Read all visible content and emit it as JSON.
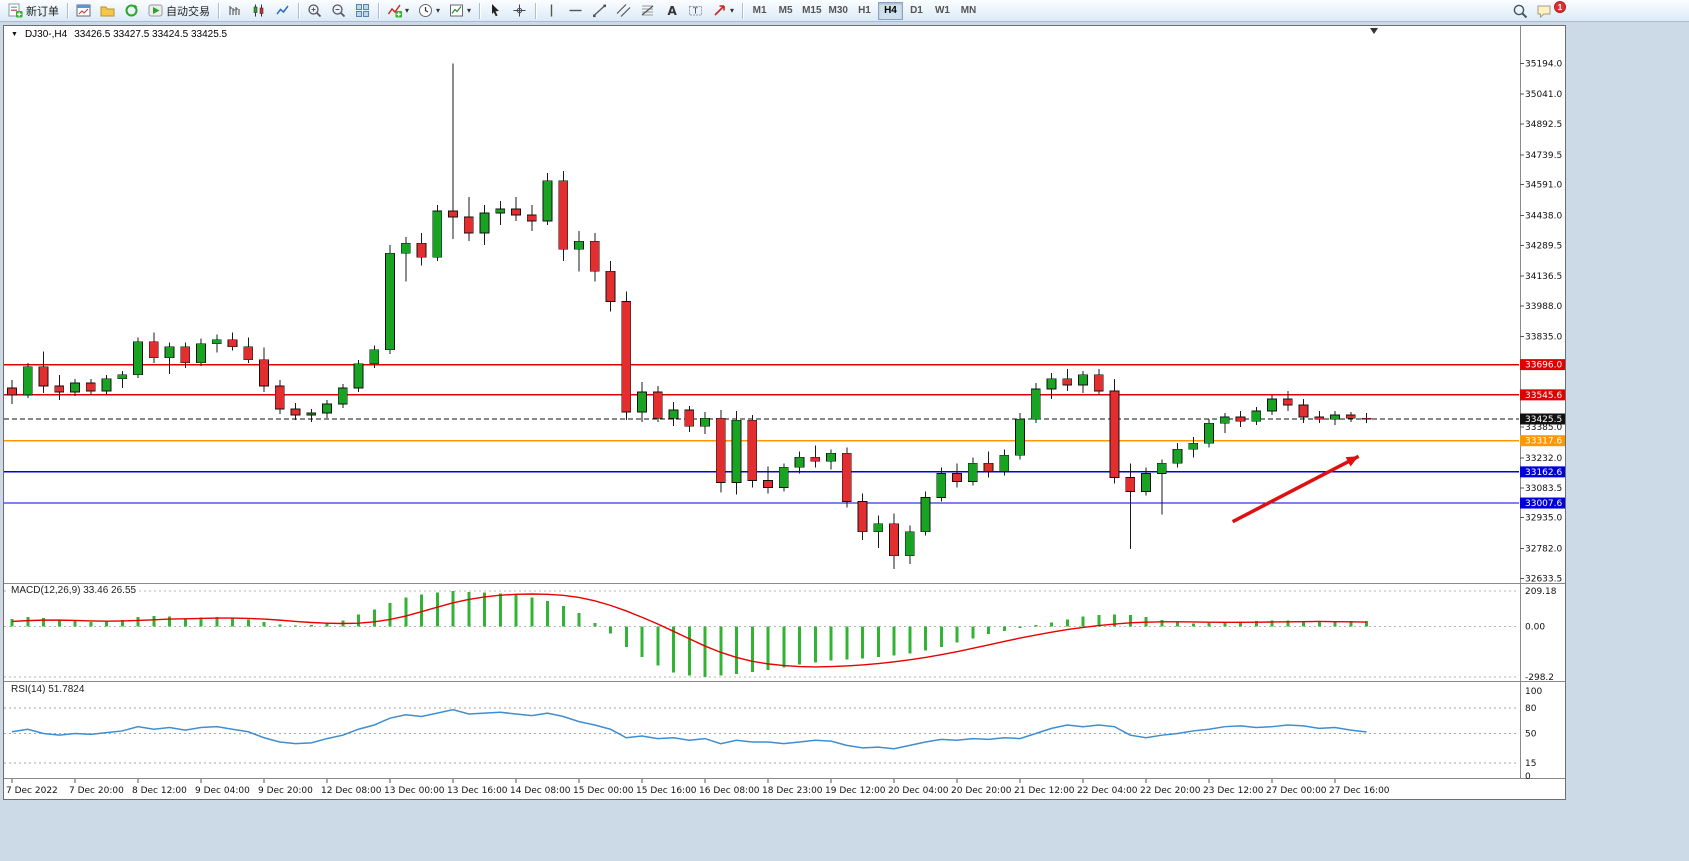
{
  "toolbar": {
    "new_order": "新订单",
    "autotrading": "自动交易",
    "timeframes": [
      {
        "label": "M1"
      },
      {
        "label": "M5"
      },
      {
        "label": "M15"
      },
      {
        "label": "M30"
      },
      {
        "label": "H1"
      },
      {
        "label": "H4"
      },
      {
        "label": "D1"
      },
      {
        "label": "W1"
      },
      {
        "label": "MN"
      }
    ],
    "active_timeframe": "H4",
    "notification_count": "1",
    "icons": [
      "new-order",
      "new-chart",
      "profiles",
      "refresh",
      "autotrading",
      "bar-chart",
      "candlestick-chart",
      "line-chart",
      "zoom-in",
      "zoom-out",
      "tile-windows",
      "indicators",
      "periods",
      "templates",
      "cursor",
      "crosshair",
      "vertical-line",
      "horizontal-line",
      "trendline",
      "equidistant-channel",
      "fibonacci",
      "text",
      "text-label",
      "arrows",
      "search",
      "messages"
    ]
  },
  "symbol": {
    "name_period": "DJ30-,H4",
    "quote": "33426.5 33427.5 33424.5 33425.5"
  },
  "indicators": {
    "macd": "MACD(12,26,9) 33.46 26.55",
    "rsi": "RSI(14) 51.7824"
  },
  "time_axis": [
    "7 Dec 2022",
    "7 Dec 20:00",
    "8 Dec 12:00",
    "9 Dec 04:00",
    "9 Dec 20:00",
    "12 Dec 08:00",
    "13 Dec 00:00",
    "13 Dec 16:00",
    "14 Dec 08:00",
    "15 Dec 00:00",
    "15 Dec 16:00",
    "16 Dec 08:00",
    "18 Dec 23:00",
    "19 Dec 12:00",
    "20 Dec 04:00",
    "20 Dec 20:00",
    "21 Dec 12:00",
    "22 Dec 04:00",
    "22 Dec 20:00",
    "23 Dec 12:00",
    "27 Dec 00:00",
    "27 Dec 16:00"
  ],
  "chart_data": [
    {
      "type": "candlestick",
      "symbol": "DJ30-",
      "period": "H4",
      "ylim": [
        32610,
        35350
      ],
      "y_ticks": [
        35194.0,
        35041.0,
        34892.5,
        34739.5,
        34591.0,
        34438.0,
        34289.5,
        34136.5,
        33988.0,
        33835.0,
        33385.0,
        33232.0,
        33083.5,
        32935.0,
        32782.0,
        32633.5
      ],
      "hlines": [
        {
          "value": 33696.0,
          "color": "#e10000"
        },
        {
          "value": 33545.6,
          "color": "#e10000"
        },
        {
          "value": 33317.6,
          "color": "#ff9800"
        },
        {
          "value": 33162.6,
          "color": "#0000dd"
        },
        {
          "value": 33007.6,
          "color": "#0000dd"
        }
      ],
      "current_price": {
        "value": 33425.5,
        "color": "#111111"
      },
      "up_color": "#19a322",
      "down_color": "#e22e2e",
      "arrow": {
        "from_bar": 77.5,
        "from_price": 32915,
        "to_bar": 85.5,
        "to_price": 33240,
        "color": "#dd1111"
      },
      "ohlc": [
        [
          33580,
          33620,
          33500,
          33545
        ],
        [
          33545,
          33705,
          33530,
          33685
        ],
        [
          33685,
          33760,
          33555,
          33590
        ],
        [
          33590,
          33645,
          33520,
          33560
        ],
        [
          33560,
          33625,
          33540,
          33605
        ],
        [
          33605,
          33625,
          33545,
          33565
        ],
        [
          33565,
          33645,
          33550,
          33625
        ],
        [
          33625,
          33665,
          33580,
          33645
        ],
        [
          33645,
          33830,
          33630,
          33810
        ],
        [
          33810,
          33855,
          33705,
          33730
        ],
        [
          33730,
          33805,
          33650,
          33785
        ],
        [
          33785,
          33805,
          33680,
          33705
        ],
        [
          33705,
          33825,
          33690,
          33800
        ],
        [
          33800,
          33845,
          33755,
          33820
        ],
        [
          33820,
          33855,
          33765,
          33785
        ],
        [
          33785,
          33830,
          33705,
          33720
        ],
        [
          33720,
          33780,
          33560,
          33590
        ],
        [
          33590,
          33620,
          33450,
          33475
        ],
        [
          33475,
          33505,
          33420,
          33445
        ],
        [
          33445,
          33475,
          33410,
          33455
        ],
        [
          33455,
          33520,
          33430,
          33500
        ],
        [
          33500,
          33600,
          33480,
          33580
        ],
        [
          33580,
          33720,
          33560,
          33700
        ],
        [
          33700,
          33790,
          33680,
          33770
        ],
        [
          33770,
          34290,
          33750,
          34250
        ],
        [
          34250,
          34330,
          34110,
          34300
        ],
        [
          34300,
          34350,
          34190,
          34230
        ],
        [
          34230,
          34490,
          34210,
          34460
        ],
        [
          34460,
          35194,
          34320,
          34430
        ],
        [
          34430,
          34530,
          34310,
          34350
        ],
        [
          34350,
          34490,
          34290,
          34450
        ],
        [
          34450,
          34510,
          34390,
          34470
        ],
        [
          34470,
          34530,
          34410,
          34440
        ],
        [
          34440,
          34490,
          34360,
          34410
        ],
        [
          34410,
          34650,
          34390,
          34610
        ],
        [
          34610,
          34660,
          34210,
          34270
        ],
        [
          34270,
          34360,
          34160,
          34310
        ],
        [
          34310,
          34350,
          34110,
          34160
        ],
        [
          34160,
          34210,
          33960,
          34010
        ],
        [
          34010,
          34060,
          33420,
          33460
        ],
        [
          33460,
          33610,
          33410,
          33560
        ],
        [
          33560,
          33590,
          33410,
          33430
        ],
        [
          33430,
          33510,
          33390,
          33470
        ],
        [
          33470,
          33490,
          33360,
          33390
        ],
        [
          33390,
          33460,
          33350,
          33430
        ],
        [
          33430,
          33470,
          33060,
          33110
        ],
        [
          33110,
          33465,
          33050,
          33420
        ],
        [
          33420,
          33445,
          33085,
          33120
        ],
        [
          33120,
          33190,
          33055,
          33085
        ],
        [
          33085,
          33205,
          33065,
          33185
        ],
        [
          33185,
          33265,
          33155,
          33235
        ],
        [
          33235,
          33295,
          33185,
          33215
        ],
        [
          33215,
          33275,
          33175,
          33255
        ],
        [
          33255,
          33285,
          32985,
          33015
        ],
        [
          33015,
          33055,
          32825,
          32865
        ],
        [
          32865,
          32945,
          32785,
          32905
        ],
        [
          32905,
          32955,
          32680,
          32745
        ],
        [
          32745,
          32895,
          32705,
          32865
        ],
        [
          32865,
          33065,
          32845,
          33035
        ],
        [
          33035,
          33185,
          33015,
          33155
        ],
        [
          33155,
          33205,
          33085,
          33115
        ],
        [
          33115,
          33235,
          33095,
          33205
        ],
        [
          33205,
          33265,
          33135,
          33165
        ],
        [
          33165,
          33275,
          33145,
          33245
        ],
        [
          33245,
          33455,
          33225,
          33425
        ],
        [
          33425,
          33605,
          33405,
          33575
        ],
        [
          33575,
          33655,
          33525,
          33625
        ],
        [
          33625,
          33675,
          33565,
          33595
        ],
        [
          33595,
          33665,
          33555,
          33645
        ],
        [
          33645,
          33675,
          33545,
          33565
        ],
        [
          33565,
          33625,
          33105,
          33135
        ],
        [
          33135,
          33205,
          32780,
          33065
        ],
        [
          33065,
          33185,
          33045,
          33155
        ],
        [
          33155,
          33225,
          32950,
          33205
        ],
        [
          33205,
          33305,
          33185,
          33275
        ],
        [
          33275,
          33335,
          33235,
          33305
        ],
        [
          33305,
          33425,
          33285,
          33405
        ],
        [
          33405,
          33455,
          33355,
          33435
        ],
        [
          33435,
          33465,
          33385,
          33415
        ],
        [
          33415,
          33485,
          33395,
          33465
        ],
        [
          33465,
          33545,
          33445,
          33525
        ],
        [
          33525,
          33565,
          33465,
          33495
        ],
        [
          33495,
          33525,
          33405,
          33435
        ],
        [
          33435,
          33465,
          33405,
          33425
        ],
        [
          33425,
          33465,
          33395,
          33445
        ],
        [
          33445,
          33460,
          33410,
          33430
        ],
        [
          33430,
          33455,
          33405,
          33425.5
        ]
      ]
    },
    {
      "type": "bar",
      "name": "MACD(12,26,9)",
      "main_value": 33.46,
      "signal_value": 26.55,
      "ylim": [
        -321,
        251
      ],
      "ticks": [
        {
          "label": "209.18",
          "value": 209.18
        },
        {
          "label": "0.00",
          "value": 0
        },
        {
          "label": "-298.2",
          "value": -298.2
        }
      ],
      "hist_color": "#33b333",
      "signal_color": "#e80000",
      "histogram": [
        45,
        55,
        50,
        40,
        32,
        28,
        32,
        38,
        55,
        62,
        58,
        48,
        52,
        56,
        48,
        42,
        28,
        12,
        6,
        10,
        20,
        35,
        70,
        100,
        140,
        170,
        190,
        200,
        209,
        205,
        200,
        195,
        185,
        170,
        150,
        120,
        80,
        20,
        -40,
        -120,
        -180,
        -230,
        -270,
        -290,
        -298,
        -290,
        -280,
        -268,
        -255,
        -240,
        -225,
        -212,
        -200,
        -195,
        -188,
        -180,
        -170,
        -158,
        -142,
        -120,
        -95,
        -70,
        -45,
        -25,
        -8,
        8,
        25,
        42,
        58,
        68,
        72,
        68,
        55,
        38,
        25,
        18,
        22,
        26,
        30,
        33,
        35,
        35,
        34,
        33,
        34,
        34,
        33.46
      ],
      "signal": [
        30,
        35,
        38,
        38,
        36,
        33,
        32,
        33,
        36,
        40,
        44,
        46,
        48,
        50,
        50,
        48,
        44,
        38,
        30,
        24,
        20,
        18,
        20,
        28,
        42,
        62,
        88,
        114,
        140,
        160,
        175,
        185,
        190,
        192,
        190,
        184,
        172,
        152,
        125,
        92,
        55,
        15,
        -28,
        -72,
        -115,
        -152,
        -182,
        -205,
        -220,
        -230,
        -236,
        -238,
        -236,
        -232,
        -226,
        -218,
        -208,
        -196,
        -182,
        -166,
        -148,
        -128,
        -108,
        -88,
        -68,
        -50,
        -33,
        -18,
        -5,
        6,
        15,
        22,
        26,
        28,
        28,
        27,
        26,
        25,
        25,
        26,
        27,
        28,
        29,
        30,
        29,
        28,
        26.55
      ]
    },
    {
      "type": "line",
      "name": "RSI(14)",
      "value": 51.7824,
      "ylim": [
        -2.4,
        110.6
      ],
      "ticks": [
        {
          "label": "100",
          "value": 100
        },
        {
          "label": "80",
          "value": 80
        },
        {
          "label": "50",
          "value": 50
        },
        {
          "label": "15",
          "value": 15
        },
        {
          "label": "0",
          "value": 0
        }
      ],
      "levels": [
        80,
        50,
        15
      ],
      "color": "#3f8ed2",
      "values": [
        52,
        55,
        50,
        48,
        50,
        49,
        51,
        53,
        58,
        55,
        57,
        54,
        57,
        58,
        55,
        52,
        45,
        40,
        38,
        39,
        44,
        48,
        55,
        60,
        68,
        72,
        70,
        74,
        78,
        73,
        74,
        75,
        73,
        71,
        74,
        70,
        64,
        60,
        55,
        45,
        47,
        44,
        45,
        42,
        44,
        38,
        42,
        40,
        40,
        38,
        40,
        42,
        41,
        36,
        33,
        34,
        32,
        36,
        40,
        43,
        42,
        44,
        43,
        45,
        44,
        50,
        56,
        60,
        58,
        60,
        58,
        48,
        45,
        48,
        50,
        53,
        55,
        58,
        59,
        57,
        58,
        60,
        59,
        56,
        57,
        54,
        51.78
      ]
    }
  ]
}
